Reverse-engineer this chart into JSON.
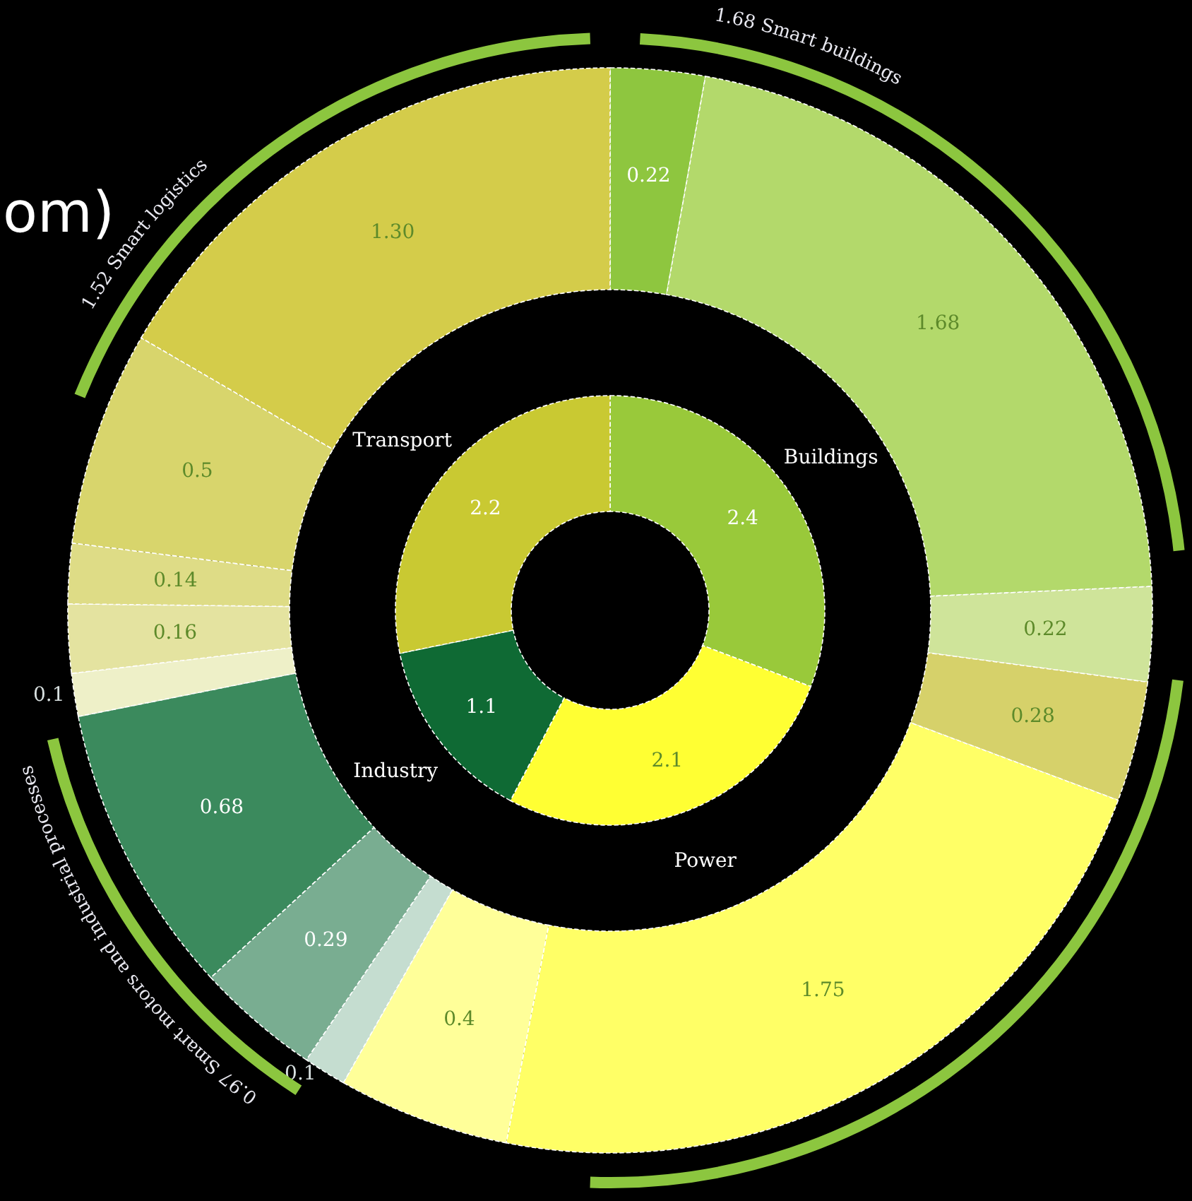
{
  "chart_data": [
    {
      "type": "donut",
      "title": "om)",
      "categories": [
        "Buildings",
        "Power",
        "Industry",
        "Transport"
      ],
      "values": [
        2.4,
        2.1,
        1.1,
        2.2
      ],
      "colors": [
        "#99c93a",
        "#ffff33",
        "#0f6a34",
        "#c9c932"
      ],
      "data_labels": true
    },
    {
      "type": "donut",
      "categories": [
        null,
        null,
        null,
        null,
        null,
        null,
        null,
        null,
        null,
        null,
        null,
        null,
        null,
        null
      ],
      "values": [
        0.22,
        1.68,
        0.22,
        0.28,
        1.75,
        0.4,
        0.1,
        0.29,
        0.68,
        0.1,
        0.16,
        0.14,
        0.5,
        1.3
      ],
      "colors": [
        "#8ec63f",
        "#b3d96b",
        "#cfe49a",
        "#d6d16a",
        "#ffff66",
        "#ffff99",
        "#c5ddd0",
        "#79ad91",
        "#3b8a5d",
        "#eef0c8",
        "#e4e3a0",
        "#dedc86",
        "#d8d56c",
        "#d4cc4a"
      ],
      "value_labels": [
        "0.22",
        "1.68",
        "0.22",
        "0.28",
        "1.75",
        "0.4",
        "0.1",
        "0.29",
        "0.68",
        "0.1",
        "0.16",
        "0.14",
        "0.5",
        "1.30"
      ],
      "annotations": [
        "1.52 Smart logistics",
        "1.68 Smart buildings",
        "0.97 Smart motors and industrial processes"
      ]
    }
  ]
}
